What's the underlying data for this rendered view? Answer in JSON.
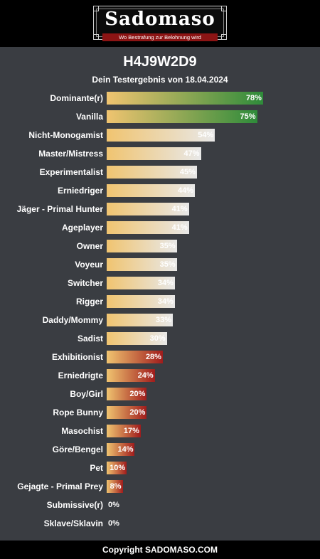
{
  "header": {
    "logo_text": "Sadomaso",
    "logo_tagline": "Wo Bestrafung zur Belohnung wird"
  },
  "result": {
    "code": "H4J9W2D9",
    "subtitle": "Dein Testergebnis von 18.04.2024"
  },
  "chart_data": {
    "type": "bar",
    "orientation": "horizontal",
    "title": "H4J9W2D9",
    "subtitle": "Dein Testergebnis von 18.04.2024",
    "xlim": [
      0,
      100
    ],
    "value_format": "percent",
    "colors": {
      "high": "#2e8b3a",
      "neutral": "#e8e8e8",
      "low": "#a01c1c",
      "base": "#f0c470"
    },
    "categories": [
      "Dominante(r)",
      "Vanilla",
      "Nicht-Monogamist",
      "Master/Mistress",
      "Experimentalist",
      "Erniedriger",
      "Jäger - Primal Hunter",
      "Ageplayer",
      "Owner",
      "Voyeur",
      "Switcher",
      "Rigger",
      "Daddy/Mommy",
      "Sadist",
      "Exhibitionist",
      "Erniedrigte",
      "Boy/Girl",
      "Rope Bunny",
      "Masochist",
      "Göre/Bengel",
      "Pet",
      "Gejagte - Primal Prey",
      "Submissive(r)",
      "Sklave/Sklavin"
    ],
    "values": [
      78,
      75,
      54,
      47,
      45,
      44,
      41,
      41,
      35,
      35,
      34,
      34,
      33,
      30,
      28,
      24,
      20,
      20,
      17,
      14,
      10,
      8,
      0,
      0
    ],
    "labels": [
      "78%",
      "75%",
      "54%",
      "47%",
      "45%",
      "44%",
      "41%",
      "41%",
      "35%",
      "35%",
      "34%",
      "34%",
      "33%",
      "30%",
      "28%",
      "24%",
      "20%",
      "20%",
      "17%",
      "14%",
      "10%",
      "8%",
      "0%",
      "0%"
    ]
  },
  "footer": {
    "text": "Copyright SADOMASO.COM"
  }
}
